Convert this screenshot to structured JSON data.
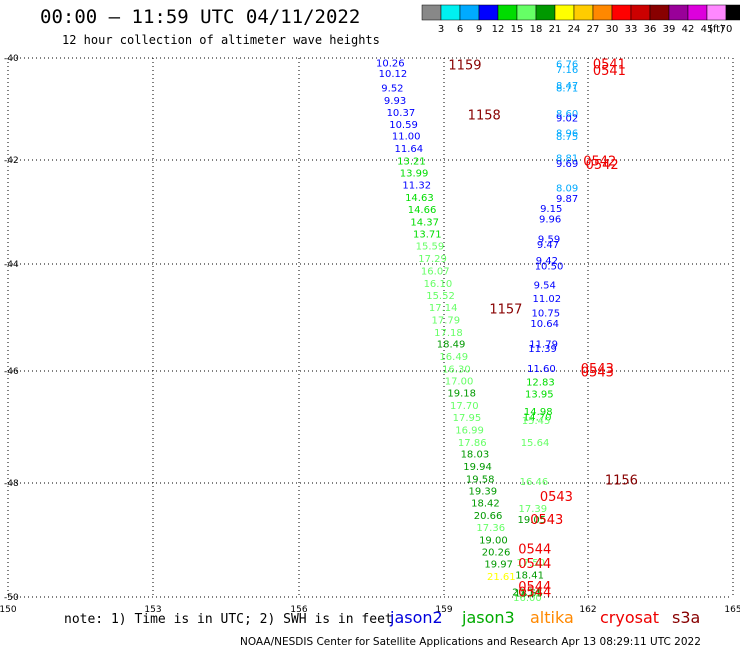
{
  "title": "00:00 – 11:59 UTC 04/11/2022",
  "subtitle": "12 hour collection of altimeter wave heights",
  "note": "note: 1) Time is in UTC; 2) SWH is in feet",
  "footer": "NOAA/NESDIS Center for Satellite Applications and Research    Apr 13 08:29:11 UTC 2022",
  "legend": [
    {
      "name": "jason2",
      "color": "#0000dd"
    },
    {
      "name": "jason3",
      "color": "#00aa00"
    },
    {
      "name": "altika",
      "color": "#ff8800"
    },
    {
      "name": "cryosat",
      "color": "#ee0000"
    },
    {
      "name": "s3a",
      "color": "#880000"
    }
  ],
  "scale": {
    "unit": "(ft)",
    "labels": [
      "3",
      "6",
      "9",
      "12",
      "15",
      "18",
      "21",
      "24",
      "27",
      "30",
      "33",
      "36",
      "39",
      "42",
      "45",
      "70"
    ],
    "colors": [
      "#888888",
      "#00f0f0",
      "#00aaff",
      "#0000ff",
      "#00dd00",
      "#66ff66",
      "#009900",
      "#ffff00",
      "#ffcc00",
      "#ff8800",
      "#ff0000",
      "#cc0000",
      "#880000",
      "#990099",
      "#dd00dd",
      "#ff88ff",
      "#000000"
    ]
  },
  "chart_data": {
    "type": "scatter",
    "xlim": [
      150,
      165
    ],
    "ylim": [
      -50,
      -40
    ],
    "x_ticks": [
      "150",
      "153",
      "156",
      "159",
      "162",
      "165"
    ],
    "y_ticks": [
      "-40",
      "-42",
      "-44",
      "-46",
      "-48",
      "-50"
    ],
    "grid": true,
    "series_a": [
      {
        "x": 159.3,
        "y": -40.08,
        "v": "10.26"
      },
      {
        "x": 159.25,
        "y": -40.28,
        "v": "10.12"
      },
      {
        "x": 159.2,
        "y": -40.55,
        "v": "9.52"
      },
      {
        "x": 159.15,
        "y": -40.78,
        "v": "9.93"
      },
      {
        "x": 159.1,
        "y": -41.0,
        "v": "10.37"
      },
      {
        "x": 159.05,
        "y": -41.22,
        "v": "10.59"
      },
      {
        "x": 159.0,
        "y": -41.44,
        "v": "11.00"
      },
      {
        "x": 158.95,
        "y": -41.67,
        "v": "11.64"
      },
      {
        "x": 158.9,
        "y": -41.9,
        "v": "13.21"
      },
      {
        "x": 158.85,
        "y": -42.12,
        "v": "13.99"
      },
      {
        "x": 158.8,
        "y": -42.35,
        "v": "11.32"
      },
      {
        "x": 158.75,
        "y": -42.58,
        "v": "14.63"
      },
      {
        "x": 158.7,
        "y": -42.8,
        "v": "14.66"
      },
      {
        "x": 158.65,
        "y": -43.03,
        "v": "14.37"
      },
      {
        "x": 158.6,
        "y": -43.26,
        "v": "13.71"
      },
      {
        "x": 158.55,
        "y": -43.48,
        "v": "15.59"
      },
      {
        "x": 158.5,
        "y": -43.71,
        "v": "17.29"
      },
      {
        "x": 158.45,
        "y": -43.94,
        "v": "16.07"
      },
      {
        "x": 158.4,
        "y": -44.17,
        "v": "16.10"
      },
      {
        "x": 158.35,
        "y": -44.4,
        "v": "15.52"
      },
      {
        "x": 158.3,
        "y": -44.62,
        "v": "17.14"
      },
      {
        "x": 158.25,
        "y": -44.85,
        "v": "17.79"
      },
      {
        "x": 158.2,
        "y": -45.08,
        "v": "17.18"
      },
      {
        "x": 158.15,
        "y": -45.3,
        "v": "18.49"
      },
      {
        "x": 158.1,
        "y": -45.53,
        "v": "16.49"
      },
      {
        "x": 158.05,
        "y": -45.76,
        "v": "16.30"
      },
      {
        "x": 158.0,
        "y": -45.98,
        "v": "17.00"
      },
      {
        "x": 157.95,
        "y": -46.21,
        "v": "19.18"
      },
      {
        "x": 157.9,
        "y": -46.44,
        "v": "17.70"
      },
      {
        "x": 157.85,
        "y": -46.66,
        "v": "17.95"
      },
      {
        "x": 157.8,
        "y": -46.89,
        "v": "16.99"
      },
      {
        "x": 157.75,
        "y": -47.12,
        "v": "17.86"
      },
      {
        "x": 157.7,
        "y": -47.34,
        "v": "18.03"
      },
      {
        "x": 157.65,
        "y": -47.57,
        "v": "19.94"
      },
      {
        "x": 157.6,
        "y": -47.8,
        "v": "19.58"
      },
      {
        "x": 157.55,
        "y": -48.02,
        "v": "19.39"
      },
      {
        "x": 157.5,
        "y": -48.25,
        "v": "18.42"
      },
      {
        "x": 157.45,
        "y": -48.48,
        "v": "20.66"
      },
      {
        "x": 157.4,
        "y": -48.7,
        "v": "17.36"
      },
      {
        "x": 157.35,
        "y": -48.93,
        "v": "19.00"
      },
      {
        "x": 157.3,
        "y": -49.16,
        "v": "20.26"
      },
      {
        "x": 157.25,
        "y": -49.38,
        "v": "19.97"
      },
      {
        "x": 157.2,
        "y": -49.61,
        "v": "21.61"
      }
    ],
    "series_b": [
      {
        "x": 162.0,
        "y": -40.1,
        "v": "6.76"
      },
      {
        "x": 162.0,
        "y": -40.2,
        "v": "7.16"
      },
      {
        "x": 162.0,
        "y": -40.5,
        "v": "8.47"
      },
      {
        "x": 162.0,
        "y": -40.55,
        "v": "8.71"
      },
      {
        "x": 162.0,
        "y": -41.02,
        "v": "8.60"
      },
      {
        "x": 162.0,
        "y": -41.1,
        "v": "9.02"
      },
      {
        "x": 162.0,
        "y": -41.38,
        "v": "8.96"
      },
      {
        "x": 162.0,
        "y": -41.45,
        "v": "8.75"
      },
      {
        "x": 162.0,
        "y": -41.85,
        "v": "8.81"
      },
      {
        "x": 162.0,
        "y": -41.95,
        "v": "9.69"
      },
      {
        "x": 162.0,
        "y": -42.4,
        "v": "8.09"
      },
      {
        "x": 162.0,
        "y": -42.6,
        "v": "9.87"
      },
      {
        "x": 162.0,
        "y": -42.78,
        "v": "9.15"
      },
      {
        "x": 162.0,
        "y": -42.98,
        "v": "9.96"
      },
      {
        "x": 162.0,
        "y": -43.35,
        "v": "9.59"
      },
      {
        "x": 162.0,
        "y": -43.45,
        "v": "9.47"
      },
      {
        "x": 162.0,
        "y": -43.75,
        "v": "9.42"
      },
      {
        "x": 162.0,
        "y": -43.85,
        "v": "10.50"
      },
      {
        "x": 162.0,
        "y": -44.2,
        "v": "9.54"
      },
      {
        "x": 162.0,
        "y": -44.45,
        "v": "11.02"
      },
      {
        "x": 162.0,
        "y": -44.72,
        "v": "10.75"
      },
      {
        "x": 162.0,
        "y": -44.92,
        "v": "10.64"
      },
      {
        "x": 162.0,
        "y": -45.3,
        "v": "11.79"
      },
      {
        "x": 162.0,
        "y": -45.38,
        "v": "11.39"
      },
      {
        "x": 162.0,
        "y": -45.75,
        "v": "11.60"
      },
      {
        "x": 162.0,
        "y": -46.0,
        "v": "12.83"
      },
      {
        "x": 162.0,
        "y": -46.22,
        "v": "13.95"
      },
      {
        "x": 162.0,
        "y": -46.55,
        "v": "14.98"
      },
      {
        "x": 162.0,
        "y": -46.65,
        "v": "14.70"
      },
      {
        "x": 162.0,
        "y": -46.72,
        "v": "15.45"
      },
      {
        "x": 162.0,
        "y": -47.12,
        "v": "15.64"
      },
      {
        "x": 162.0,
        "y": -47.85,
        "v": "16.46"
      },
      {
        "x": 162.0,
        "y": -48.35,
        "v": "17.39"
      },
      {
        "x": 162.0,
        "y": -48.55,
        "v": "19.05"
      },
      {
        "x": 162.0,
        "y": -49.35,
        "v": "17.50"
      },
      {
        "x": 162.0,
        "y": -49.58,
        "v": "18.41"
      },
      {
        "x": 162.0,
        "y": -49.92,
        "v": "18.55"
      },
      {
        "x": 162.0,
        "y": -50.0,
        "v": "16.00"
      },
      {
        "x": 162.0,
        "y": -49.9,
        "v": "20.14"
      }
    ],
    "time_marks": [
      {
        "x": 159.15,
        "y": -40.12,
        "v": "1159",
        "color": "#880000"
      },
      {
        "x": 159.55,
        "y": -41.05,
        "v": "1158",
        "color": "#880000"
      },
      {
        "x": 160.0,
        "y": -44.65,
        "v": "1157",
        "color": "#880000"
      },
      {
        "x": 162.4,
        "y": -47.82,
        "v": "1156",
        "color": "#880000"
      },
      {
        "x": 162.15,
        "y": -40.1,
        "v": "0541",
        "color": "#ee0000"
      },
      {
        "x": 162.15,
        "y": -40.22,
        "v": "0541",
        "color": "#ee0000"
      },
      {
        "x": 161.95,
        "y": -41.9,
        "v": "0542",
        "color": "#ee0000"
      },
      {
        "x": 162.0,
        "y": -41.97,
        "v": "0542",
        "color": "#ee0000"
      },
      {
        "x": 161.9,
        "y": -45.75,
        "v": "0543",
        "color": "#ee0000"
      },
      {
        "x": 161.9,
        "y": -45.82,
        "v": "0543",
        "color": "#ee0000"
      },
      {
        "x": 161.05,
        "y": -48.13,
        "v": "0543",
        "color": "#ee0000"
      },
      {
        "x": 160.85,
        "y": -48.55,
        "v": "0543",
        "color": "#ee0000"
      },
      {
        "x": 160.6,
        "y": -49.1,
        "v": "0544",
        "color": "#ee0000"
      },
      {
        "x": 160.6,
        "y": -49.37,
        "v": "0544",
        "color": "#ee0000"
      },
      {
        "x": 160.6,
        "y": -49.8,
        "v": "0544",
        "color": "#ee0000"
      },
      {
        "x": 160.6,
        "y": -49.9,
        "v": "0544",
        "color": "#ee0000"
      }
    ]
  }
}
